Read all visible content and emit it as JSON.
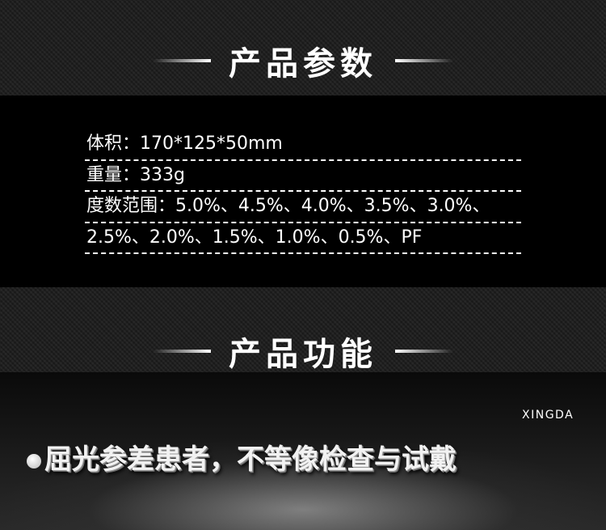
{
  "params": {
    "title": "产品参数",
    "rows": [
      "体积：170*125*50mm",
      "重量：333g",
      "度数范围：5.0%、4.5%、4.0%、3.5%、3.0%、",
      "2.5%、2.0%、1.5%、1.0%、0.5%、PF"
    ]
  },
  "functions": {
    "title": "产品功能",
    "brand": "XINGDA",
    "feature": "屈光参差患者，不等像检查与试戴"
  },
  "colors": {
    "background": "#1b1b1b",
    "band": "#000000",
    "text": "#ffffff"
  }
}
